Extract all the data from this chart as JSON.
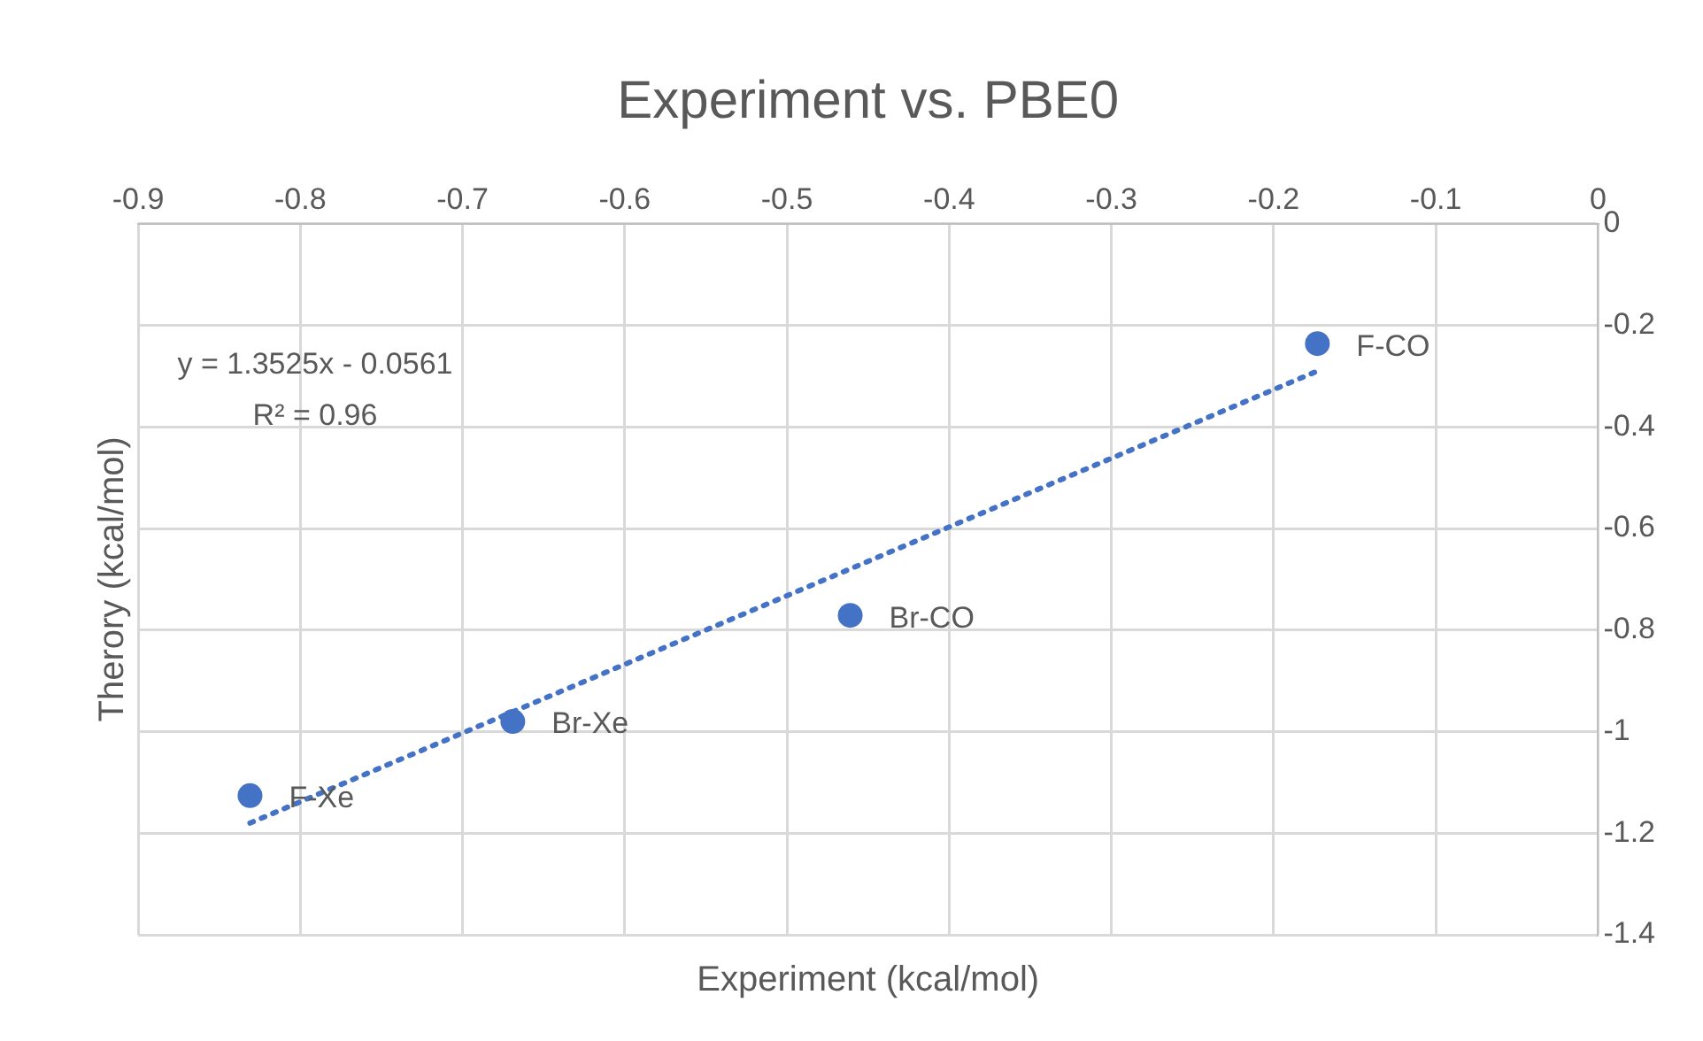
{
  "chart_data": {
    "type": "scatter",
    "title": "Experiment vs. PBE0",
    "xlabel": "Experiment (kcal/mol)",
    "ylabel": "Therory (kcal/mol)",
    "x": [
      -0.831,
      -0.669,
      -0.461,
      -0.173
    ],
    "series": [
      {
        "type": "scatter",
        "color": "#4472c4",
        "values": [
          -1.126,
          -0.98,
          -0.771,
          -0.236
        ],
        "marker": "circle"
      },
      {
        "type": "line",
        "color": "#4472c4",
        "x": [
          -0.831,
          -0.173
        ],
        "values": [
          -1.18,
          -0.29
        ],
        "marker": "none",
        "line_style": "dotted"
      }
    ],
    "xlim": [
      -0.9,
      0
    ],
    "xticks": [
      -0.9,
      -0.8,
      -0.7,
      -0.6,
      -0.5,
      -0.4,
      -0.3,
      -0.2,
      -0.1,
      0
    ],
    "ylim": [
      -1.4,
      0
    ],
    "yticks": [
      -1.4,
      -1.2,
      -1,
      -0.8,
      -0.6,
      -0.4,
      -0.2,
      0
    ],
    "grid": true,
    "legend": false,
    "annotations": [
      {
        "text": "F-Xe",
        "x": -0.831,
        "y": -1.126
      },
      {
        "text": "Br-Xe",
        "x": -0.669,
        "y": -0.98
      },
      {
        "text": "Br-CO",
        "x": -0.461,
        "y": -0.771
      },
      {
        "text": "F-CO",
        "x": -0.173,
        "y": -0.236
      },
      "y = 1.3525x - 0.0561",
      "R² = 0.96"
    ]
  }
}
